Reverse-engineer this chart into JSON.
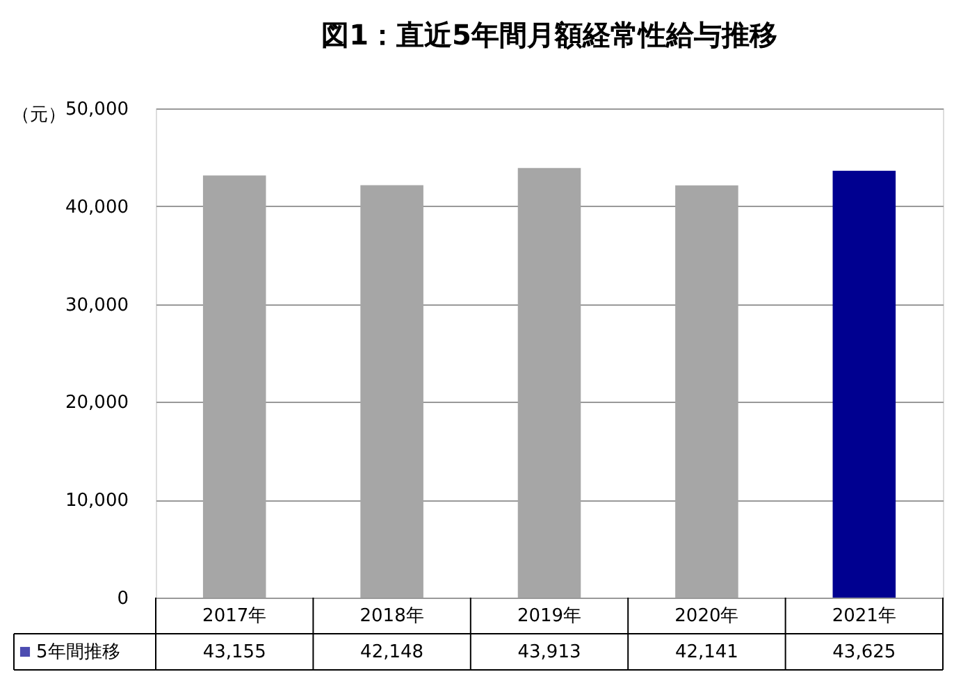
{
  "chart_data": {
    "type": "bar",
    "title": "図1：直近5年間月額経常性給与推移",
    "ylabel": "（元）",
    "categories": [
      "2017年",
      "2018年",
      "2019年",
      "2020年",
      "2021年"
    ],
    "series": [
      {
        "name": "5年間推移",
        "color": "#000090",
        "colors": [
          "#a6a6a6",
          "#a6a6a6",
          "#a6a6a6",
          "#a6a6a6",
          "#000090"
        ],
        "values": [
          43155,
          42148,
          43913,
          42141,
          43625
        ],
        "value_labels": [
          "43,155",
          "42,148",
          "43,913",
          "42,141",
          "43,625"
        ]
      }
    ],
    "ylim": [
      0,
      50000
    ],
    "yticks": [
      0,
      {
        "value": 10000,
        "label": "10,000"
      },
      {
        "value": 20000,
        "label": "20,000"
      },
      {
        "value": 30000,
        "label": "30,000"
      },
      {
        "value": 40000,
        "label": "40,000"
      },
      {
        "value": 50000,
        "label": "50,000"
      }
    ],
    "grid": "y",
    "legend": "bottom left"
  }
}
